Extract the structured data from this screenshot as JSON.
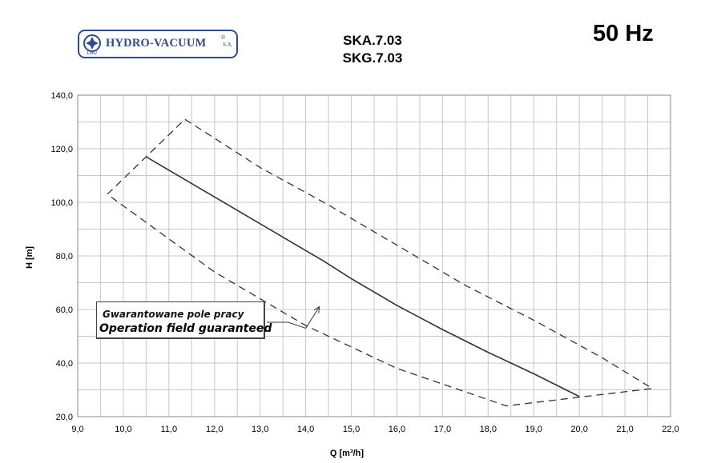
{
  "header": {
    "logo": {
      "brand": "HYDRO-VACUUM",
      "registered": "®",
      "suffix": "S.A.",
      "year": "1862",
      "icon": "hydro-vacuum-emblem-icon"
    },
    "model_line_1": "SKA.7.03",
    "model_line_2": "SKG.7.03",
    "frequency": "50 Hz"
  },
  "annotation": {
    "label_pl": "Gwarantowane pole pracy",
    "label_en": "Operation field guaranteed"
  },
  "colors": {
    "brand": "#2f4b8c",
    "grid": "#c8c8c8",
    "curve": "#333333",
    "border": "#888888"
  },
  "chart_data": {
    "type": "line",
    "xlabel": "Q [m³/h]",
    "ylabel": "H [m]",
    "xlim": [
      9.0,
      22.0
    ],
    "ylim": [
      20.0,
      140.0
    ],
    "x_ticks": [
      "9,0",
      "10,0",
      "11,0",
      "12,0",
      "13,0",
      "14,0",
      "15,0",
      "16,0",
      "17,0",
      "18,0",
      "19,0",
      "20,0",
      "21,0",
      "22,0"
    ],
    "y_ticks": [
      "20,0",
      "40,0",
      "60,0",
      "80,0",
      "100,0",
      "120,0",
      "140,0"
    ],
    "x_tick_values": [
      9,
      10,
      11,
      12,
      13,
      14,
      15,
      16,
      17,
      18,
      19,
      20,
      21,
      22
    ],
    "y_tick_values": [
      20,
      40,
      60,
      80,
      100,
      120,
      140
    ],
    "grid": true,
    "x_minor_step": 0.5,
    "y_minor_step": 10,
    "series": [
      {
        "style": "solid",
        "x": [
          10.5,
          11.0,
          12.0,
          13.0,
          14.0,
          14.4,
          15.0,
          16.0,
          17.0,
          18.0,
          19.0,
          20.0
        ],
        "y": [
          117.0,
          112.0,
          102.0,
          92.0,
          82.0,
          78.0,
          71.5,
          61.5,
          52.5,
          44.0,
          36.0,
          27.5
        ]
      },
      {
        "style": "dashed",
        "x": [
          9.65,
          11.35,
          13.0,
          14.5,
          16.0,
          17.5,
          19.0,
          20.5,
          21.6,
          18.4,
          16.0,
          14.0,
          12.0,
          9.65
        ],
        "y": [
          103.0,
          131.0,
          113.0,
          99.0,
          84.0,
          69.0,
          56.0,
          42.0,
          30.5,
          24.0,
          38.0,
          54.0,
          74.0,
          103.0
        ]
      }
    ],
    "arrow": {
      "from": [
        14.0,
        53.0
      ],
      "to": [
        14.3,
        61.0
      ]
    }
  }
}
